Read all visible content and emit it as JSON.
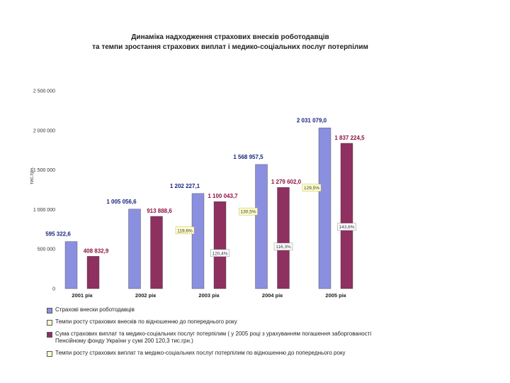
{
  "title_line1": "Динаміка надходження страхових внесків роботодавців",
  "title_line2": "та темпи зростання страхових виплат і медико-соціальних послуг потерпілим",
  "colors": {
    "contributions": "#8b8fe0",
    "payments": "#8e3060",
    "growth_box": "#ffffcc",
    "growth_box_border": "#c8b44a"
  },
  "chart_data": {
    "type": "bar",
    "title": "Динаміка надходження страхових внесків роботодавців та темпи зростання страхових виплат і медико-соціальних послуг потерпілим",
    "ylabel": "тис.грн.",
    "ylim": [
      0,
      2500000
    ],
    "yticks": [
      0,
      500000,
      1000000,
      1500000,
      2000000,
      2500000
    ],
    "ytick_labels": [
      "0",
      "500 000",
      "1 000 000",
      "1 500 000",
      "2 000 000",
      "2 500 000"
    ],
    "categories": [
      "2001 рік",
      "2002 рік",
      "2003 рік",
      "2004 рік",
      "2005 рік"
    ],
    "series": [
      {
        "name": "Страхові внески роботодавців",
        "values": [
          595322.6,
          1005056.6,
          1202227.1,
          1568957.5,
          2031079.0
        ],
        "labels": [
          "595 322,6",
          "1 005 056,6",
          "1 202 227,1",
          "1 568 957,5",
          "2 031 079,0"
        ],
        "growth_labels": [
          "",
          "",
          "119,6%",
          "130,5%",
          "129,5%"
        ]
      },
      {
        "name": "Сума страхових виплат та медико-соціальних послуг потерпілим ( у 2005 році з урахуванням погашення заборгованості Пенсійному фонду України у сумі 200 120,3 тис.грн.)",
        "values": [
          408832.9,
          913888.6,
          1100043.7,
          1279602.0,
          1837224.5
        ],
        "labels": [
          "408 832,9",
          "913 888,6",
          "1 100 043,7",
          "1 279 602,0",
          "1 837 224,5"
        ],
        "growth_labels": [
          "",
          "",
          "120,4%",
          "116,3%",
          "143,6%"
        ]
      }
    ]
  },
  "legend": [
    {
      "label": "Страхові внески роботодавців",
      "swatch": "contributions"
    },
    {
      "label": "Темпи росту страхових внесків по відношенню до попереднього року",
      "swatch": "growth"
    },
    {
      "label": "Сума страхових виплат та медико-соціальних послуг потерпілим ( у 2005 році з урахуванням погашення заборгованості Пенсійному фонду України у сумі 200 120,3 тис.грн.)",
      "swatch": "payments"
    },
    {
      "label": "Темпи росту страхових виплат та медико-соціальних послуг потерпілим по відношенню до попереднього року",
      "swatch": "growth"
    }
  ]
}
